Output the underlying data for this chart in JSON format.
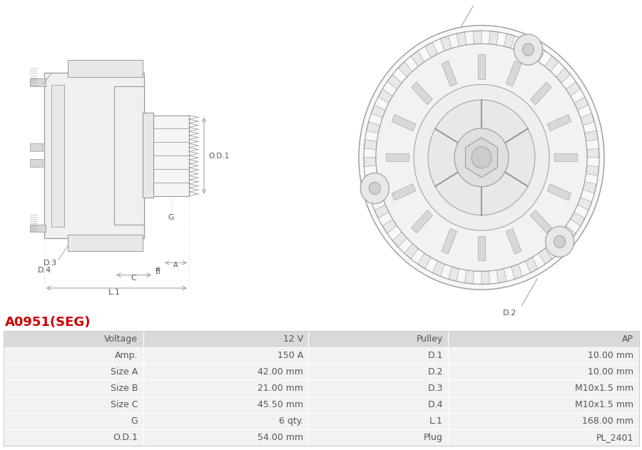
{
  "title": "A0951(SEG)",
  "title_color": "#cc0000",
  "table_headers_left": [
    "Voltage",
    "Amp.",
    "Size A",
    "Size B",
    "Size C",
    "G",
    "O.D.1"
  ],
  "table_values_left": [
    "12 V",
    "150 A",
    "42.00 mm",
    "21.00 mm",
    "45.50 mm",
    "6 qty.",
    "54.00 mm"
  ],
  "table_headers_right": [
    "Pulley",
    "D.1",
    "D.2",
    "D.3",
    "D.4",
    "L.1",
    "Plug"
  ],
  "table_values_right": [
    "AP",
    "10.00 mm",
    "10.00 mm",
    "M10x1.5 mm",
    "M10x1.5 mm",
    "168.00 mm",
    "PL_2401"
  ],
  "bg_color": "#ffffff",
  "table_header_bg": "#d9d9d9",
  "table_row_bg": "#f2f2f2",
  "text_color": "#555555",
  "font_size_table": 9,
  "font_size_title": 13
}
